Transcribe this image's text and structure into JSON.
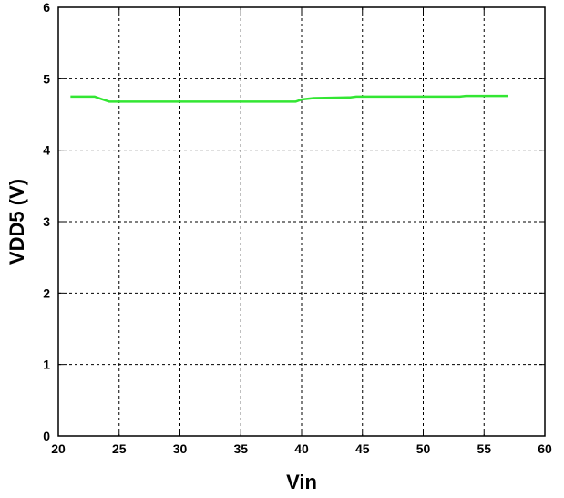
{
  "chart_data": {
    "type": "line",
    "title": "",
    "xlabel": "Vin",
    "ylabel": "VDD5 (V)",
    "xlim": [
      20,
      60
    ],
    "ylim": [
      0,
      6
    ],
    "xticks": [
      "20",
      "25",
      "30",
      "35",
      "40",
      "45",
      "50",
      "55",
      "60"
    ],
    "yticks": [
      "0",
      "1",
      "2",
      "3",
      "4",
      "5",
      "6"
    ],
    "grid": true,
    "grid_style": "dashed",
    "series": [
      {
        "color": "#33e633",
        "x": [
          21,
          23,
          23.5,
          24.2,
          39.5,
          40,
          41,
          44,
          44.5,
          53,
          53.5,
          57
        ],
        "y": [
          4.75,
          4.75,
          4.72,
          4.68,
          4.68,
          4.71,
          4.73,
          4.74,
          4.75,
          4.75,
          4.76,
          4.76
        ]
      }
    ]
  }
}
